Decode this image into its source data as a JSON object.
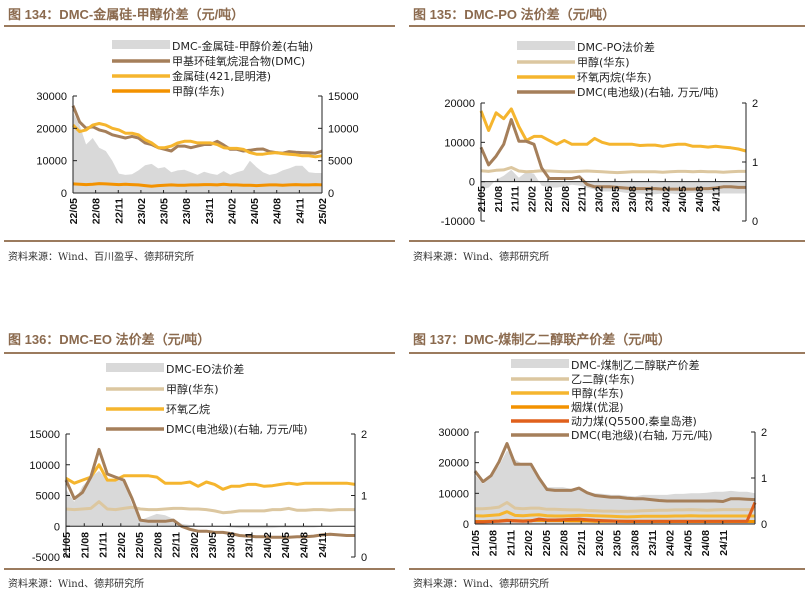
{
  "colors": {
    "title": "#8b6a4e",
    "rule": "#9b7b5e",
    "area": "#d9d9d9",
    "dmc_brown": "#a57f5a",
    "gold": "#f5b52e",
    "orange": "#f39200",
    "beige": "#dcc7a0",
    "red_orange": "#e0601c"
  },
  "chart_data": [
    {
      "id": "c134",
      "type": "line",
      "title": "图 134：DMC-金属硅-甲醇价差（元/吨）",
      "source": "资料来源：Wind、百川盈孚、德邦研究所",
      "x_ticks": [
        "22/05",
        "22/08",
        "22/11",
        "23/02",
        "23/05",
        "23/08",
        "23/11",
        "24/02",
        "24/05",
        "24/08",
        "24/11",
        "25/02"
      ],
      "ylim_left": [
        0,
        30000
      ],
      "yticks_left": [
        0,
        10000,
        20000,
        30000
      ],
      "ylim_right": [
        0,
        15000
      ],
      "yticks_right": [
        0,
        5000,
        10000,
        15000
      ],
      "legend_placement": "top-center",
      "series": [
        {
          "name": "DMC-金属硅-甲醇价差(右轴)",
          "kind": "area",
          "axis": "right",
          "color": "#d9d9d9",
          "values": [
            12500,
            10500,
            7500,
            8500,
            7000,
            6500,
            5000,
            3000,
            2800,
            2900,
            3500,
            4300,
            4500,
            3800,
            4000,
            3200,
            3500,
            3600,
            3200,
            2800,
            3300,
            3000,
            2800,
            3400,
            2800,
            3200,
            3500,
            5000,
            4000,
            3200,
            2800,
            3000,
            3500,
            3800,
            4200,
            4200,
            3200,
            3100,
            3100
          ]
        },
        {
          "name": "甲基环硅氧烷混合物(DMC)",
          "kind": "line",
          "axis": "left",
          "color": "#a57f5a",
          "values": [
            27000,
            22000,
            20000,
            20500,
            19500,
            19000,
            18000,
            17500,
            17000,
            17500,
            17000,
            15500,
            15000,
            14000,
            13500,
            13000,
            14500,
            14500,
            14000,
            14500,
            15000,
            15000,
            16000,
            14800,
            13500,
            13500,
            13000,
            13200,
            13500,
            13600,
            12800,
            12500,
            12300,
            12800,
            12600,
            12500,
            12400,
            12300,
            13000
          ]
        },
        {
          "name": "金属硅(421,昆明港)",
          "kind": "line",
          "axis": "left",
          "color": "#f5b52e",
          "values": [
            21000,
            19000,
            19500,
            21000,
            21500,
            21000,
            20000,
            19500,
            18500,
            18500,
            18000,
            16500,
            15500,
            14000,
            14000,
            14500,
            15500,
            16000,
            16000,
            15500,
            15500,
            15500,
            15000,
            14000,
            13800,
            13800,
            13500,
            12500,
            12000,
            12000,
            12300,
            12500,
            12200,
            12000,
            11800,
            11500,
            11500,
            11200,
            11500
          ]
        },
        {
          "name": "甲醇(华东)",
          "kind": "line",
          "axis": "left",
          "color": "#f39200",
          "values": [
            2800,
            2700,
            2600,
            2700,
            2900,
            2800,
            2700,
            2600,
            2700,
            2600,
            2500,
            2300,
            2100,
            2300,
            2400,
            2500,
            2400,
            2400,
            2500,
            2500,
            2600,
            2600,
            2500,
            2700,
            2500,
            2500,
            2400,
            2400,
            2300,
            2400,
            2500,
            2500,
            2400,
            2500,
            2600,
            2500,
            2500,
            2600,
            2500
          ]
        }
      ]
    },
    {
      "id": "c135",
      "type": "line",
      "title": "图 135：DMC-PO 法价差（元/吨）",
      "source": "资料来源：Wind、德邦研究所",
      "x_ticks": [
        "21/05",
        "21/08",
        "21/11",
        "22/02",
        "22/05",
        "22/08",
        "22/11",
        "23/02",
        "23/05",
        "23/08",
        "23/11",
        "24/02",
        "24/05",
        "24/08",
        "24/11"
      ],
      "ylim_left": [
        -10000,
        20000
      ],
      "yticks_left": [
        -10000,
        0,
        10000,
        20000
      ],
      "ylim_right": [
        0,
        2
      ],
      "yticks_right": [
        0,
        1,
        2
      ],
      "legend_placement": "top-center",
      "series": [
        {
          "name": "DMC-PO法价差",
          "kind": "area",
          "axis": "left",
          "color": "#d9d9d9",
          "values": [
            -2000,
            -1500,
            500,
            1500,
            3000,
            1000,
            2500,
            2000,
            -1000,
            -1500,
            -1500,
            -1200,
            -800,
            -1000,
            -1500,
            -2000,
            -2500,
            -2500,
            -2500,
            -2800,
            -3000,
            -3000,
            -3200,
            -3200,
            -3000,
            -3000,
            -3200,
            -3000,
            -2800,
            -3000,
            -3000,
            -3000,
            -3000,
            -3000,
            -3000,
            -3000
          ]
        },
        {
          "name": "甲醇(华东)",
          "kind": "line",
          "axis": "left",
          "color": "#dcc7a0",
          "values": [
            2800,
            2600,
            2900,
            3000,
            3600,
            2700,
            2500,
            2600,
            2800,
            2700,
            2600,
            2500,
            2500,
            2600,
            2700,
            2600,
            2500,
            2400,
            2300,
            2400,
            2500,
            2500,
            2500,
            2500,
            2400,
            2500,
            2600,
            2600,
            2500,
            2600,
            2500,
            2500,
            2400,
            2500,
            2600,
            2600
          ]
        },
        {
          "name": "环氧丙烷(华东)",
          "kind": "line",
          "axis": "left",
          "color": "#f5b52e",
          "values": [
            18000,
            13000,
            17500,
            16000,
            18500,
            14000,
            10500,
            11500,
            11500,
            10500,
            9500,
            10500,
            9500,
            9500,
            9500,
            11000,
            10000,
            9500,
            9500,
            9500,
            9500,
            9200,
            9300,
            9300,
            9000,
            9300,
            9500,
            9500,
            9000,
            9000,
            8800,
            9000,
            8800,
            8600,
            8300,
            7800
          ]
        },
        {
          "name": "DMC(电池级)(右轴, 万元/吨)",
          "kind": "line",
          "axis": "right",
          "color": "#a57f5a",
          "values": [
            1.25,
            0.95,
            1.1,
            1.3,
            1.72,
            1.35,
            1.35,
            1.3,
            0.9,
            0.72,
            0.72,
            0.72,
            0.72,
            0.75,
            0.62,
            0.58,
            0.58,
            0.58,
            0.57,
            0.56,
            0.55,
            0.55,
            0.55,
            0.55,
            0.54,
            0.54,
            0.54,
            0.54,
            0.54,
            0.55,
            0.55,
            0.56,
            0.58,
            0.58,
            0.57,
            0.57
          ]
        }
      ]
    },
    {
      "id": "c136",
      "type": "line",
      "title": "图 136：DMC-EO 法价差（元/吨）",
      "source": "资料来源：Wind、德邦研究所",
      "x_ticks": [
        "21/05",
        "21/08",
        "21/11",
        "22/02",
        "22/05",
        "22/08",
        "22/11",
        "23/02",
        "23/05",
        "23/08",
        "23/11",
        "24/02",
        "24/05",
        "24/08",
        "24/11"
      ],
      "ylim_left": [
        -5000,
        15000
      ],
      "yticks_left": [
        -5000,
        0,
        5000,
        10000,
        15000
      ],
      "ylim_right": [
        0,
        2
      ],
      "yticks_right": [
        0,
        1,
        2
      ],
      "legend_placement": "top-center",
      "series": [
        {
          "name": "DMC-EO法价差",
          "kind": "area",
          "axis": "left",
          "color": "#d9d9d9",
          "values": [
            6000,
            4000,
            6500,
            8000,
            9000,
            7500,
            7500,
            7500,
            3500,
            1000,
            1500,
            2000,
            1800,
            1200,
            400,
            200,
            100,
            0,
            0,
            0,
            -200,
            -300,
            -300,
            -300,
            -300,
            -300,
            -200,
            -200,
            -200,
            -200,
            -200,
            -100,
            0,
            0,
            0,
            0
          ]
        },
        {
          "name": "甲醇(华东)",
          "kind": "line",
          "axis": "left",
          "color": "#dcc7a0",
          "values": [
            2800,
            2700,
            2800,
            2900,
            4000,
            2800,
            2700,
            2900,
            3100,
            2800,
            2700,
            2700,
            2800,
            2900,
            2900,
            2800,
            2800,
            2700,
            2500,
            2200,
            2300,
            2500,
            2500,
            2500,
            2500,
            2700,
            2700,
            2900,
            2600,
            2600,
            2700,
            2700,
            2600,
            2700,
            2700,
            2700
          ]
        },
        {
          "name": "环氧乙烷",
          "kind": "line",
          "axis": "left",
          "color": "#f5b52e",
          "values": [
            7800,
            7000,
            7500,
            8000,
            10000,
            7500,
            7500,
            8200,
            8200,
            8200,
            8200,
            8000,
            7000,
            7000,
            7000,
            7200,
            6500,
            7200,
            6800,
            6000,
            6500,
            6500,
            6800,
            6800,
            6500,
            6600,
            6800,
            7000,
            6800,
            7000,
            7000,
            7000,
            7000,
            7000,
            7000,
            6800
          ]
        },
        {
          "name": "DMC(电池级)(右轴, 万元/吨)",
          "kind": "line",
          "axis": "right",
          "color": "#a57f5a",
          "values": [
            1.25,
            0.95,
            1.05,
            1.3,
            1.75,
            1.35,
            1.3,
            1.25,
            0.95,
            0.6,
            0.58,
            0.58,
            0.58,
            0.6,
            0.5,
            0.45,
            0.42,
            0.42,
            0.4,
            0.4,
            0.38,
            0.35,
            0.34,
            0.33,
            0.33,
            0.32,
            0.32,
            0.32,
            0.33,
            0.33,
            0.34,
            0.36,
            0.37,
            0.36,
            0.35,
            0.35
          ]
        }
      ]
    },
    {
      "id": "c137",
      "type": "line",
      "title": "图 137：DMC-煤制乙二醇联产价差（元/吨）",
      "source": "资料来源：Wind、德邦研究所",
      "x_ticks": [
        "21/05",
        "21/08",
        "21/11",
        "22/02",
        "22/05",
        "22/08",
        "22/11",
        "23/02",
        "23/05",
        "23/08",
        "23/11",
        "24/02",
        "24/05",
        "24/08",
        "24/11"
      ],
      "ylim_left": [
        0,
        30000
      ],
      "yticks_left": [
        0,
        10000,
        20000,
        30000
      ],
      "ylim_right": [
        0,
        2
      ],
      "yticks_right": [
        0,
        1,
        2
      ],
      "legend_placement": "top-center",
      "series": [
        {
          "name": "DMC-煤制乙二醇联产价差",
          "kind": "area",
          "axis": "left",
          "color": "#d9d9d9",
          "values": [
            16000,
            13000,
            16000,
            19000,
            24000,
            21000,
            19500,
            19500,
            15000,
            12000,
            12000,
            12000,
            11500,
            11500,
            10500,
            10000,
            9800,
            9500,
            9500,
            9200,
            9000,
            9500,
            9500,
            9500,
            9500,
            9800,
            9800,
            10000,
            10000,
            10200,
            10500,
            10500,
            10800,
            10500,
            10500,
            10000
          ]
        },
        {
          "name": "乙二醇(华东)",
          "kind": "line",
          "axis": "left",
          "color": "#dcc7a0",
          "values": [
            5000,
            5000,
            5200,
            5500,
            7000,
            5200,
            5000,
            5200,
            5200,
            4800,
            4800,
            4700,
            4600,
            4600,
            4400,
            4300,
            4200,
            4200,
            4100,
            4100,
            4200,
            4300,
            4400,
            4500,
            4500,
            4600,
            4600,
            4700,
            4600,
            4500,
            4600,
            4700,
            4700,
            4700,
            4700,
            4700
          ]
        },
        {
          "name": "甲醇(华东)",
          "kind": "line",
          "axis": "left",
          "color": "#f5b52e",
          "values": [
            2700,
            2600,
            2800,
            3000,
            4000,
            2800,
            2700,
            2900,
            3000,
            2700,
            2600,
            2600,
            2700,
            2800,
            2800,
            2700,
            2600,
            2500,
            2400,
            2300,
            2400,
            2500,
            2500,
            2500,
            2500,
            2600,
            2600,
            2700,
            2600,
            2600,
            2600,
            2600,
            2600,
            2600,
            2600,
            2600
          ]
        },
        {
          "name": "烟煤(优混)",
          "kind": "line",
          "axis": "left",
          "color": "#f39200",
          "values": [
            800,
            800,
            900,
            1000,
            1200,
            1100,
            1000,
            1100,
            1200,
            1100,
            1100,
            1100,
            1000,
            1000,
            1000,
            900,
            900,
            900,
            900,
            800,
            800,
            800,
            800,
            800,
            800,
            800,
            800,
            800,
            800,
            800,
            800,
            800,
            800,
            800,
            800,
            800
          ]
        },
        {
          "name": "动力煤(Q5500,秦皇岛港)",
          "kind": "line",
          "axis": "left",
          "color": "#e0601c",
          "values": [
            700,
            700,
            800,
            900,
            1100,
            1000,
            900,
            1000,
            1600,
            1300,
            1300,
            1400,
            1500,
            1600,
            1400,
            1200,
            1100,
            1000,
            900,
            900,
            900,
            900,
            900,
            900,
            900,
            900,
            900,
            900,
            900,
            900,
            900,
            900,
            900,
            900,
            900,
            7000
          ]
        },
        {
          "name": "DMC(电池级)(右轴, 万元/吨)",
          "kind": "line",
          "axis": "right",
          "color": "#a57f5a",
          "values": [
            1.15,
            0.92,
            1.05,
            1.35,
            1.75,
            1.3,
            1.3,
            1.3,
            1.0,
            0.75,
            0.73,
            0.73,
            0.73,
            0.78,
            0.68,
            0.62,
            0.6,
            0.58,
            0.58,
            0.56,
            0.55,
            0.55,
            0.53,
            0.51,
            0.5,
            0.5,
            0.5,
            0.5,
            0.5,
            0.5,
            0.5,
            0.49,
            0.55,
            0.55,
            0.54,
            0.53
          ]
        }
      ]
    }
  ]
}
